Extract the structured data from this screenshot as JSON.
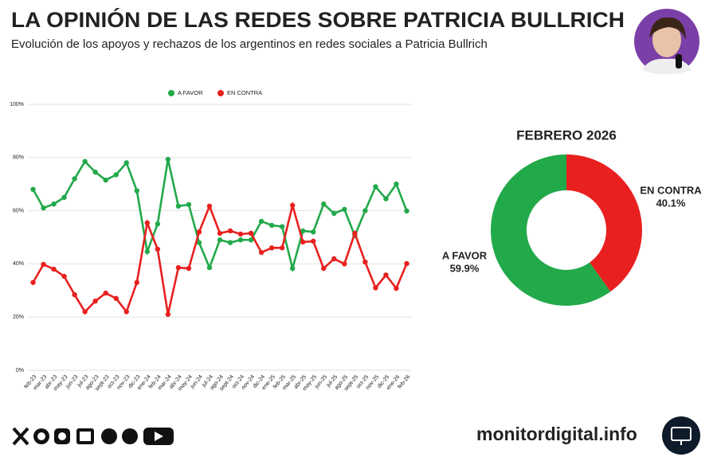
{
  "header": {
    "title": "LA OPINIÓN DE LAS REDES SOBRE PATRICIA BULLRICH",
    "subtitle": "Evolución de los apoyos y rechazos de los argentinos en redes sociales a Patricia Bullrich"
  },
  "chart_data": [
    {
      "type": "line",
      "categories": [
        "feb-23",
        "mar-23",
        "abr-23",
        "may-23",
        "jun-23",
        "jul-23",
        "ago-23",
        "sept-23",
        "oct-23",
        "nov-23",
        "dic-23",
        "ene-24",
        "feb-24",
        "mar-24",
        "abr-24",
        "may-24",
        "jun-24",
        "jul-24",
        "ago-24",
        "sept-24",
        "oct-24",
        "nov-24",
        "dic-24",
        "ene-25",
        "feb-25",
        "mar-25",
        "abr-25",
        "may-25",
        "jun-25",
        "jul-25",
        "ago-25",
        "sept-25",
        "oct-25",
        "nov-25",
        "dic-25",
        "ene-26",
        "feb-26"
      ],
      "series": [
        {
          "name": "A FAVOR",
          "color": "#22a94a",
          "values": [
            68,
            61,
            62.5,
            65,
            72,
            78.5,
            74.5,
            71.5,
            73.5,
            78,
            67.5,
            44.6,
            55,
            79.3,
            61.7,
            62.3,
            48,
            38.6,
            49,
            48,
            49,
            49,
            56,
            54.5,
            54,
            38.3,
            52.4,
            52,
            62.5,
            59,
            60.5,
            50.6,
            60,
            69,
            64.5,
            70,
            59.9
          ]
        },
        {
          "name": "EN CONTRA",
          "color": "#e8201f",
          "values": [
            33,
            39.8,
            38,
            35.3,
            28.4,
            22,
            26,
            29,
            27,
            22,
            33,
            55.4,
            45.5,
            21,
            38.6,
            38.3,
            52,
            61.7,
            51.5,
            52.4,
            51.2,
            51.5,
            44.3,
            46,
            46,
            62,
            48.2,
            48.5,
            38.3,
            41.9,
            40,
            51.5,
            40.7,
            31,
            35.8,
            30.8,
            40.1
          ]
        }
      ],
      "ylim": [
        0,
        100
      ],
      "yticks": [
        {
          "value": 0,
          "label": "0%"
        },
        {
          "value": 20,
          "label": "20%"
        },
        {
          "value": 40,
          "label": "40%"
        },
        {
          "value": 60,
          "label": "60%"
        },
        {
          "value": 80,
          "label": "80%"
        },
        {
          "value": 100,
          "label": "100%"
        }
      ],
      "grid": true,
      "legend": "top"
    },
    {
      "type": "donut",
      "title": "FEBRERO 2026",
      "categories": [
        "A FAVOR",
        "EN CONTRA"
      ],
      "values": [
        59.9,
        40.1
      ],
      "value_labels": [
        "59.9%",
        "40.1%"
      ],
      "colors": [
        "#22a94a",
        "#e8201f"
      ]
    }
  ],
  "footer": {
    "site": "monitordigital.info"
  }
}
